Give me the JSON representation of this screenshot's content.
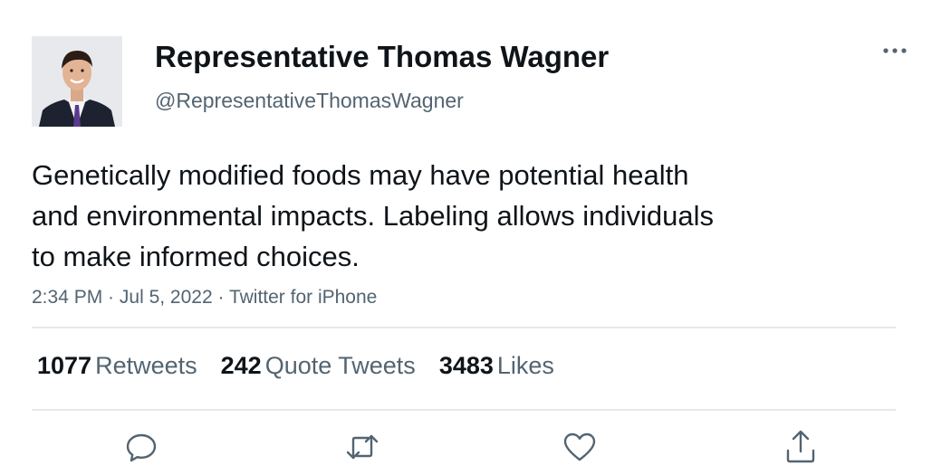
{
  "tweet": {
    "author": {
      "display_name": "Representative Thomas Wagner",
      "handle": "@RepresentativeThomasWagner",
      "avatar_icon": "profile-photo-man-in-suit"
    },
    "text_lines": [
      "Genetically modified foods may have potential health",
      "and environmental impacts. Labeling allows individuals",
      "to make informed choices."
    ],
    "time": "2:34 PM",
    "date": "Jul 5, 2022",
    "source": "Twitter for iPhone",
    "separator": " · "
  },
  "stats": {
    "retweets": {
      "count": "1077",
      "label": "Retweets"
    },
    "quotes": {
      "count": "242",
      "label": "Quote Tweets"
    },
    "likes": {
      "count": "3483",
      "label": "Likes"
    }
  },
  "actions": [
    {
      "name": "reply",
      "icon": "reply-icon"
    },
    {
      "name": "retweet",
      "icon": "retweet-icon"
    },
    {
      "name": "like",
      "icon": "heart-icon"
    },
    {
      "name": "share",
      "icon": "share-icon"
    }
  ],
  "colors": {
    "text_primary": "#0f1419",
    "text_secondary": "#536471",
    "divider": "#e6e9eb",
    "icon": "#536471"
  }
}
